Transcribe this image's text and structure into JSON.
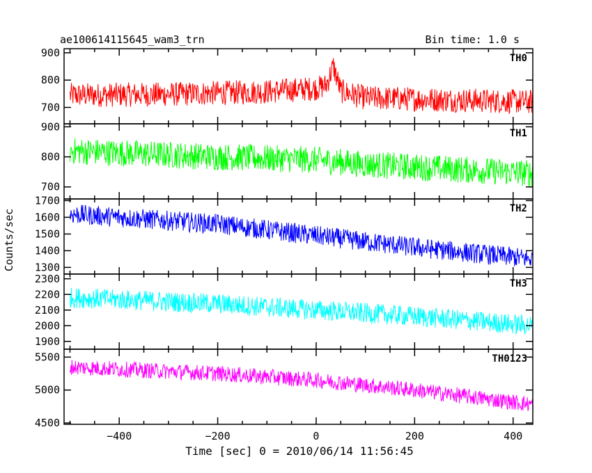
{
  "header": {
    "title": "ae100614115645_wam3_trn",
    "bin_time": "Bin time: 1.0 s"
  },
  "chart_data": {
    "type": "line",
    "title": "ae100614115645_wam3_trn",
    "subtitle": "Bin time: 1.0 s",
    "xlabel": "Time [sec] 0 = 2010/06/14 11:56:45",
    "ylabel": "Counts/sec",
    "xlim": [
      -512,
      440
    ],
    "x_range_data": [
      -500,
      440
    ],
    "x_ticks": [
      -400,
      -200,
      0,
      200,
      400
    ],
    "grid": false,
    "panels": [
      {
        "name": "TH0",
        "color": "#ff0000",
        "ylim": [
          640,
          915
        ],
        "y_ticks": [
          700,
          800,
          900
        ],
        "trend": [
          [
            -500,
            745
          ],
          [
            -300,
            748
          ],
          [
            -100,
            758
          ],
          [
            0,
            770
          ],
          [
            20,
            780
          ],
          [
            35,
            850
          ],
          [
            50,
            760
          ],
          [
            100,
            735
          ],
          [
            440,
            720
          ]
        ],
        "noise_amplitude": 45
      },
      {
        "name": "TH1",
        "color": "#00ff00",
        "ylim": [
          660,
          910
        ],
        "y_ticks": [
          700,
          800,
          900
        ],
        "trend": [
          [
            -500,
            820
          ],
          [
            -200,
            800
          ],
          [
            0,
            790
          ],
          [
            100,
            775
          ],
          [
            440,
            745
          ]
        ],
        "noise_amplitude": 45
      },
      {
        "name": "TH2",
        "color": "#0000ff",
        "ylim": [
          1260,
          1710
        ],
        "y_ticks": [
          1300,
          1400,
          1500,
          1600,
          1700
        ],
        "trend": [
          [
            -500,
            1620
          ],
          [
            -200,
            1560
          ],
          [
            0,
            1490
          ],
          [
            200,
            1420
          ],
          [
            440,
            1350
          ]
        ],
        "noise_amplitude": 60
      },
      {
        "name": "TH3",
        "color": "#00ffff",
        "ylim": [
          1850,
          2330
        ],
        "y_ticks": [
          1900,
          2000,
          2100,
          2200,
          2300
        ],
        "trend": [
          [
            -500,
            2180
          ],
          [
            -200,
            2140
          ],
          [
            0,
            2100
          ],
          [
            200,
            2060
          ],
          [
            440,
            2000
          ]
        ],
        "noise_amplitude": 65
      },
      {
        "name": "TH0123",
        "color": "#ff00ff",
        "ylim": [
          4480,
          5620
        ],
        "y_ticks": [
          4500,
          5000,
          5500
        ],
        "trend": [
          [
            -500,
            5350
          ],
          [
            -200,
            5250
          ],
          [
            0,
            5150
          ],
          [
            200,
            5000
          ],
          [
            440,
            4780
          ]
        ],
        "noise_amplitude": 120
      }
    ]
  }
}
